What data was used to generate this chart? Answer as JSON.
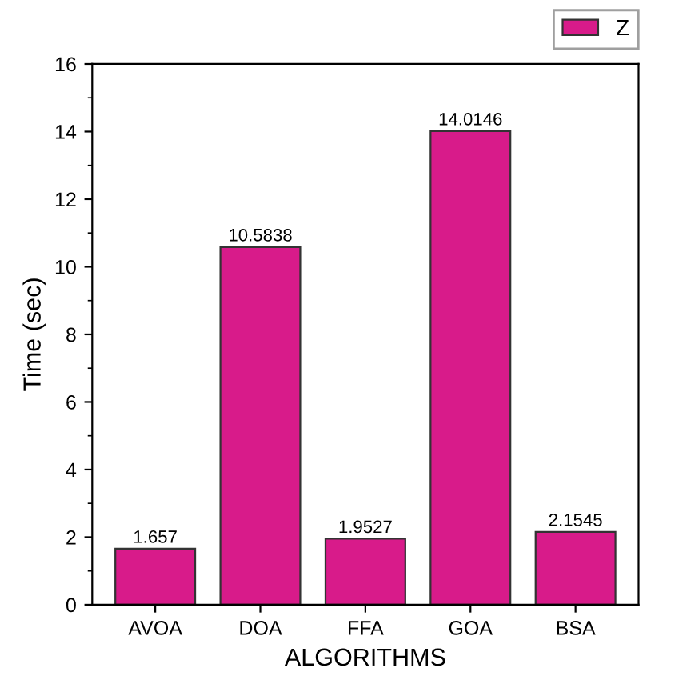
{
  "chart_data": {
    "type": "bar",
    "xlabel": "ALGORITHMS",
    "ylabel": "Time (sec)",
    "categories": [
      "AVOA",
      "DOA",
      "FFA",
      "GOA",
      "BSA"
    ],
    "series": [
      {
        "name": "Z",
        "color": "#d81b8a",
        "values": [
          1.657,
          10.5838,
          1.9527,
          14.0146,
          2.1545
        ]
      }
    ],
    "data_labels": true,
    "ylim": [
      0,
      16
    ],
    "yticks": [
      0,
      2,
      4,
      6,
      8,
      10,
      12,
      14,
      16
    ],
    "grid": false,
    "legend": "top right"
  }
}
